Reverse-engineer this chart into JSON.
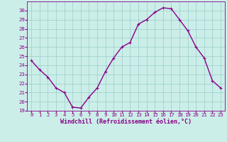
{
  "x": [
    0,
    1,
    2,
    3,
    4,
    5,
    6,
    7,
    8,
    9,
    10,
    11,
    12,
    13,
    14,
    15,
    16,
    17,
    18,
    19,
    20,
    21,
    22,
    23
  ],
  "y": [
    24.5,
    23.5,
    22.7,
    21.5,
    21.0,
    19.4,
    19.3,
    20.5,
    21.5,
    23.3,
    24.8,
    26.0,
    26.5,
    28.5,
    29.0,
    29.8,
    30.3,
    30.2,
    29.0,
    27.8,
    26.0,
    24.8,
    22.3,
    21.5
  ],
  "line_color": "#880088",
  "marker": "P",
  "bg_color": "#cceee8",
  "grid_color": "#99cccc",
  "xlabel": "Windchill (Refroidissement éolien,°C)",
  "xlim": [
    -0.5,
    23.5
  ],
  "ylim": [
    19,
    31
  ],
  "yticks": [
    19,
    20,
    21,
    22,
    23,
    24,
    25,
    26,
    27,
    28,
    29,
    30
  ],
  "xtick_labels": [
    "0",
    "1",
    "2",
    "3",
    "4",
    "5",
    "6",
    "7",
    "8",
    "9",
    "10",
    "11",
    "12",
    "13",
    "14",
    "15",
    "16",
    "17",
    "18",
    "19",
    "20",
    "21",
    "22",
    "23"
  ],
  "label_color": "#880088",
  "linewidth": 1.0,
  "markersize": 3,
  "tick_fontsize": 5.2,
  "ylabel_fontsize": 5.2,
  "xlabel_fontsize": 6.0
}
